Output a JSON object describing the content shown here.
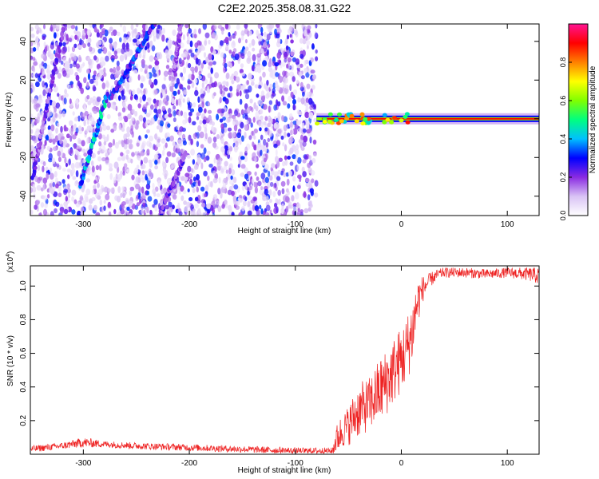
{
  "chart_data": [
    {
      "type": "heatmap",
      "title": "C2E2.2025.358.08.31.G22",
      "xlabel": "Height of straight line (km)",
      "ylabel": "Frequency (Hz)",
      "xlim": [
        -350,
        130
      ],
      "ylim": [
        -50,
        49
      ],
      "x_ticks": [
        -300,
        -200,
        -100,
        0,
        100
      ],
      "y_ticks": [
        -40,
        -20,
        0,
        20,
        40
      ],
      "colorbar": {
        "label": "Normalized spectral amplitude",
        "range": [
          0,
          1
        ],
        "ticks": [
          0.0,
          0.2,
          0.4,
          0.6,
          0.8
        ],
        "colors": [
          "#ffffff",
          "#d9c3f5",
          "#8a2be2",
          "#0000ff",
          "#00c0ff",
          "#00ff80",
          "#80ff00",
          "#ffff00",
          "#ff8000",
          "#ff0000",
          "#ff1493"
        ]
      },
      "regions": [
        {
          "name": "noise",
          "x_range": [
            -350,
            -80
          ],
          "note": "scattered low-amplitude purple speckle"
        },
        {
          "name": "signal",
          "x_range": [
            -80,
            130
          ],
          "frequency_hz": 0,
          "note": "narrow high-amplitude carrier line at 0 Hz"
        }
      ],
      "streaks": [
        {
          "x_start": -348,
          "f_start": -30,
          "x_end": -318,
          "f_end": 49,
          "peak": 0.25
        },
        {
          "x_start": -303,
          "f_start": -35,
          "x_end": -278,
          "f_end": 12,
          "peak": 0.45
        },
        {
          "x_start": -275,
          "f_start": 10,
          "x_end": -233,
          "f_end": 49,
          "peak": 0.35
        },
        {
          "x_start": -228,
          "f_start": -50,
          "x_end": -204,
          "f_end": -18,
          "peak": 0.25
        },
        {
          "x_start": -215,
          "f_start": 20,
          "x_end": -208,
          "f_end": 49,
          "peak": 0.2
        }
      ]
    },
    {
      "type": "line",
      "title": "",
      "xlabel": "Height of straight line (km)",
      "ylabel": "SNR (10 * v/v)",
      "y_scale_label": "(x10",
      "y_scale_exponent": "4",
      "xlim": [
        -350,
        130
      ],
      "ylim": [
        0,
        1.12
      ],
      "x_ticks": [
        -300,
        -200,
        -100,
        0,
        100
      ],
      "y_ticks": [
        0.2,
        0.4,
        0.6,
        0.8,
        1.0
      ],
      "series": [
        {
          "name": "SNR",
          "color": "#ee2222",
          "x": [
            -350,
            -320,
            -300,
            -280,
            -250,
            -200,
            -150,
            -100,
            -80,
            -65,
            -62,
            -58,
            -55,
            -50,
            -45,
            -40,
            -35,
            -30,
            -25,
            -20,
            -15,
            -10,
            -5,
            0,
            5,
            10,
            15,
            20,
            25,
            30,
            35,
            40,
            60,
            80,
            100,
            120,
            130
          ],
          "values": [
            0.03,
            0.05,
            0.07,
            0.06,
            0.05,
            0.04,
            0.03,
            0.02,
            0.02,
            0.02,
            0.08,
            0.12,
            0.14,
            0.17,
            0.22,
            0.26,
            0.28,
            0.3,
            0.34,
            0.38,
            0.42,
            0.47,
            0.52,
            0.56,
            0.62,
            0.72,
            0.9,
            0.98,
            1.02,
            1.05,
            1.07,
            1.08,
            1.08,
            1.07,
            1.08,
            1.07,
            1.06
          ],
          "noise": [
            0.02,
            0.02,
            0.03,
            0.02,
            0.02,
            0.02,
            0.02,
            0.02,
            0.02,
            0.02,
            0.08,
            0.1,
            0.1,
            0.12,
            0.14,
            0.16,
            0.16,
            0.16,
            0.18,
            0.2,
            0.2,
            0.2,
            0.2,
            0.2,
            0.2,
            0.2,
            0.15,
            0.08,
            0.05,
            0.04,
            0.03,
            0.03,
            0.03,
            0.03,
            0.03,
            0.04,
            0.05
          ]
        }
      ]
    }
  ]
}
